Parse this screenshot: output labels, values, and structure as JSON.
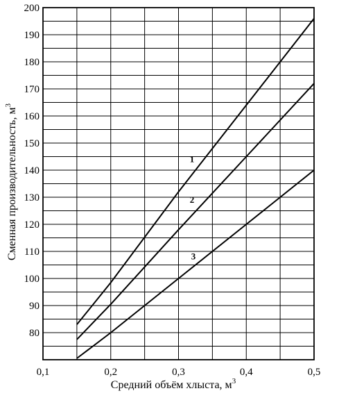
{
  "chart_data": {
    "type": "line",
    "title": "",
    "xlabel": "Средний объём хлыста, м",
    "xlabel_unit_sup": "3",
    "ylabel": "Сменная  производительность, м",
    "ylabel_unit_sup": "3",
    "xlim": [
      0.1,
      0.5
    ],
    "ylim": [
      70,
      200
    ],
    "xticks": [
      0.1,
      0.2,
      0.3,
      0.4,
      0.5
    ],
    "xtick_labels": [
      "0,1",
      "0,2",
      "0,3",
      "0,4",
      "0,5"
    ],
    "yticks": [
      80,
      90,
      100,
      110,
      120,
      130,
      140,
      150,
      160,
      170,
      180,
      190,
      200
    ],
    "ytick_labels": [
      "80",
      "90",
      "100",
      "110",
      "120",
      "130",
      "140",
      "150",
      "160",
      "170",
      "180",
      "190",
      "200"
    ],
    "grid": {
      "vertical": [
        0.1,
        0.15,
        0.2,
        0.25,
        0.3,
        0.35,
        0.4,
        0.45,
        0.5
      ],
      "horizontal": [
        70,
        75,
        80,
        85,
        90,
        95,
        100,
        105,
        110,
        115,
        120,
        125,
        130,
        135,
        140,
        145,
        150,
        155,
        160,
        165,
        170,
        175,
        180,
        185,
        190,
        195,
        200
      ]
    },
    "series": [
      {
        "name": "1",
        "x": [
          0.15,
          0.2,
          0.3,
          0.4,
          0.5
        ],
        "y": [
          83,
          98.5,
          132,
          164,
          196
        ],
        "label_at": [
          0.32,
          143
        ]
      },
      {
        "name": "2",
        "x": [
          0.15,
          0.2,
          0.3,
          0.4,
          0.5
        ],
        "y": [
          77.5,
          90.5,
          118,
          145,
          172
        ],
        "label_at": [
          0.32,
          128
        ]
      },
      {
        "name": "3",
        "x": [
          0.15,
          0.2,
          0.3,
          0.4,
          0.5
        ],
        "y": [
          70.5,
          80,
          100,
          120,
          140
        ],
        "label_at": [
          0.322,
          107
        ]
      }
    ]
  }
}
